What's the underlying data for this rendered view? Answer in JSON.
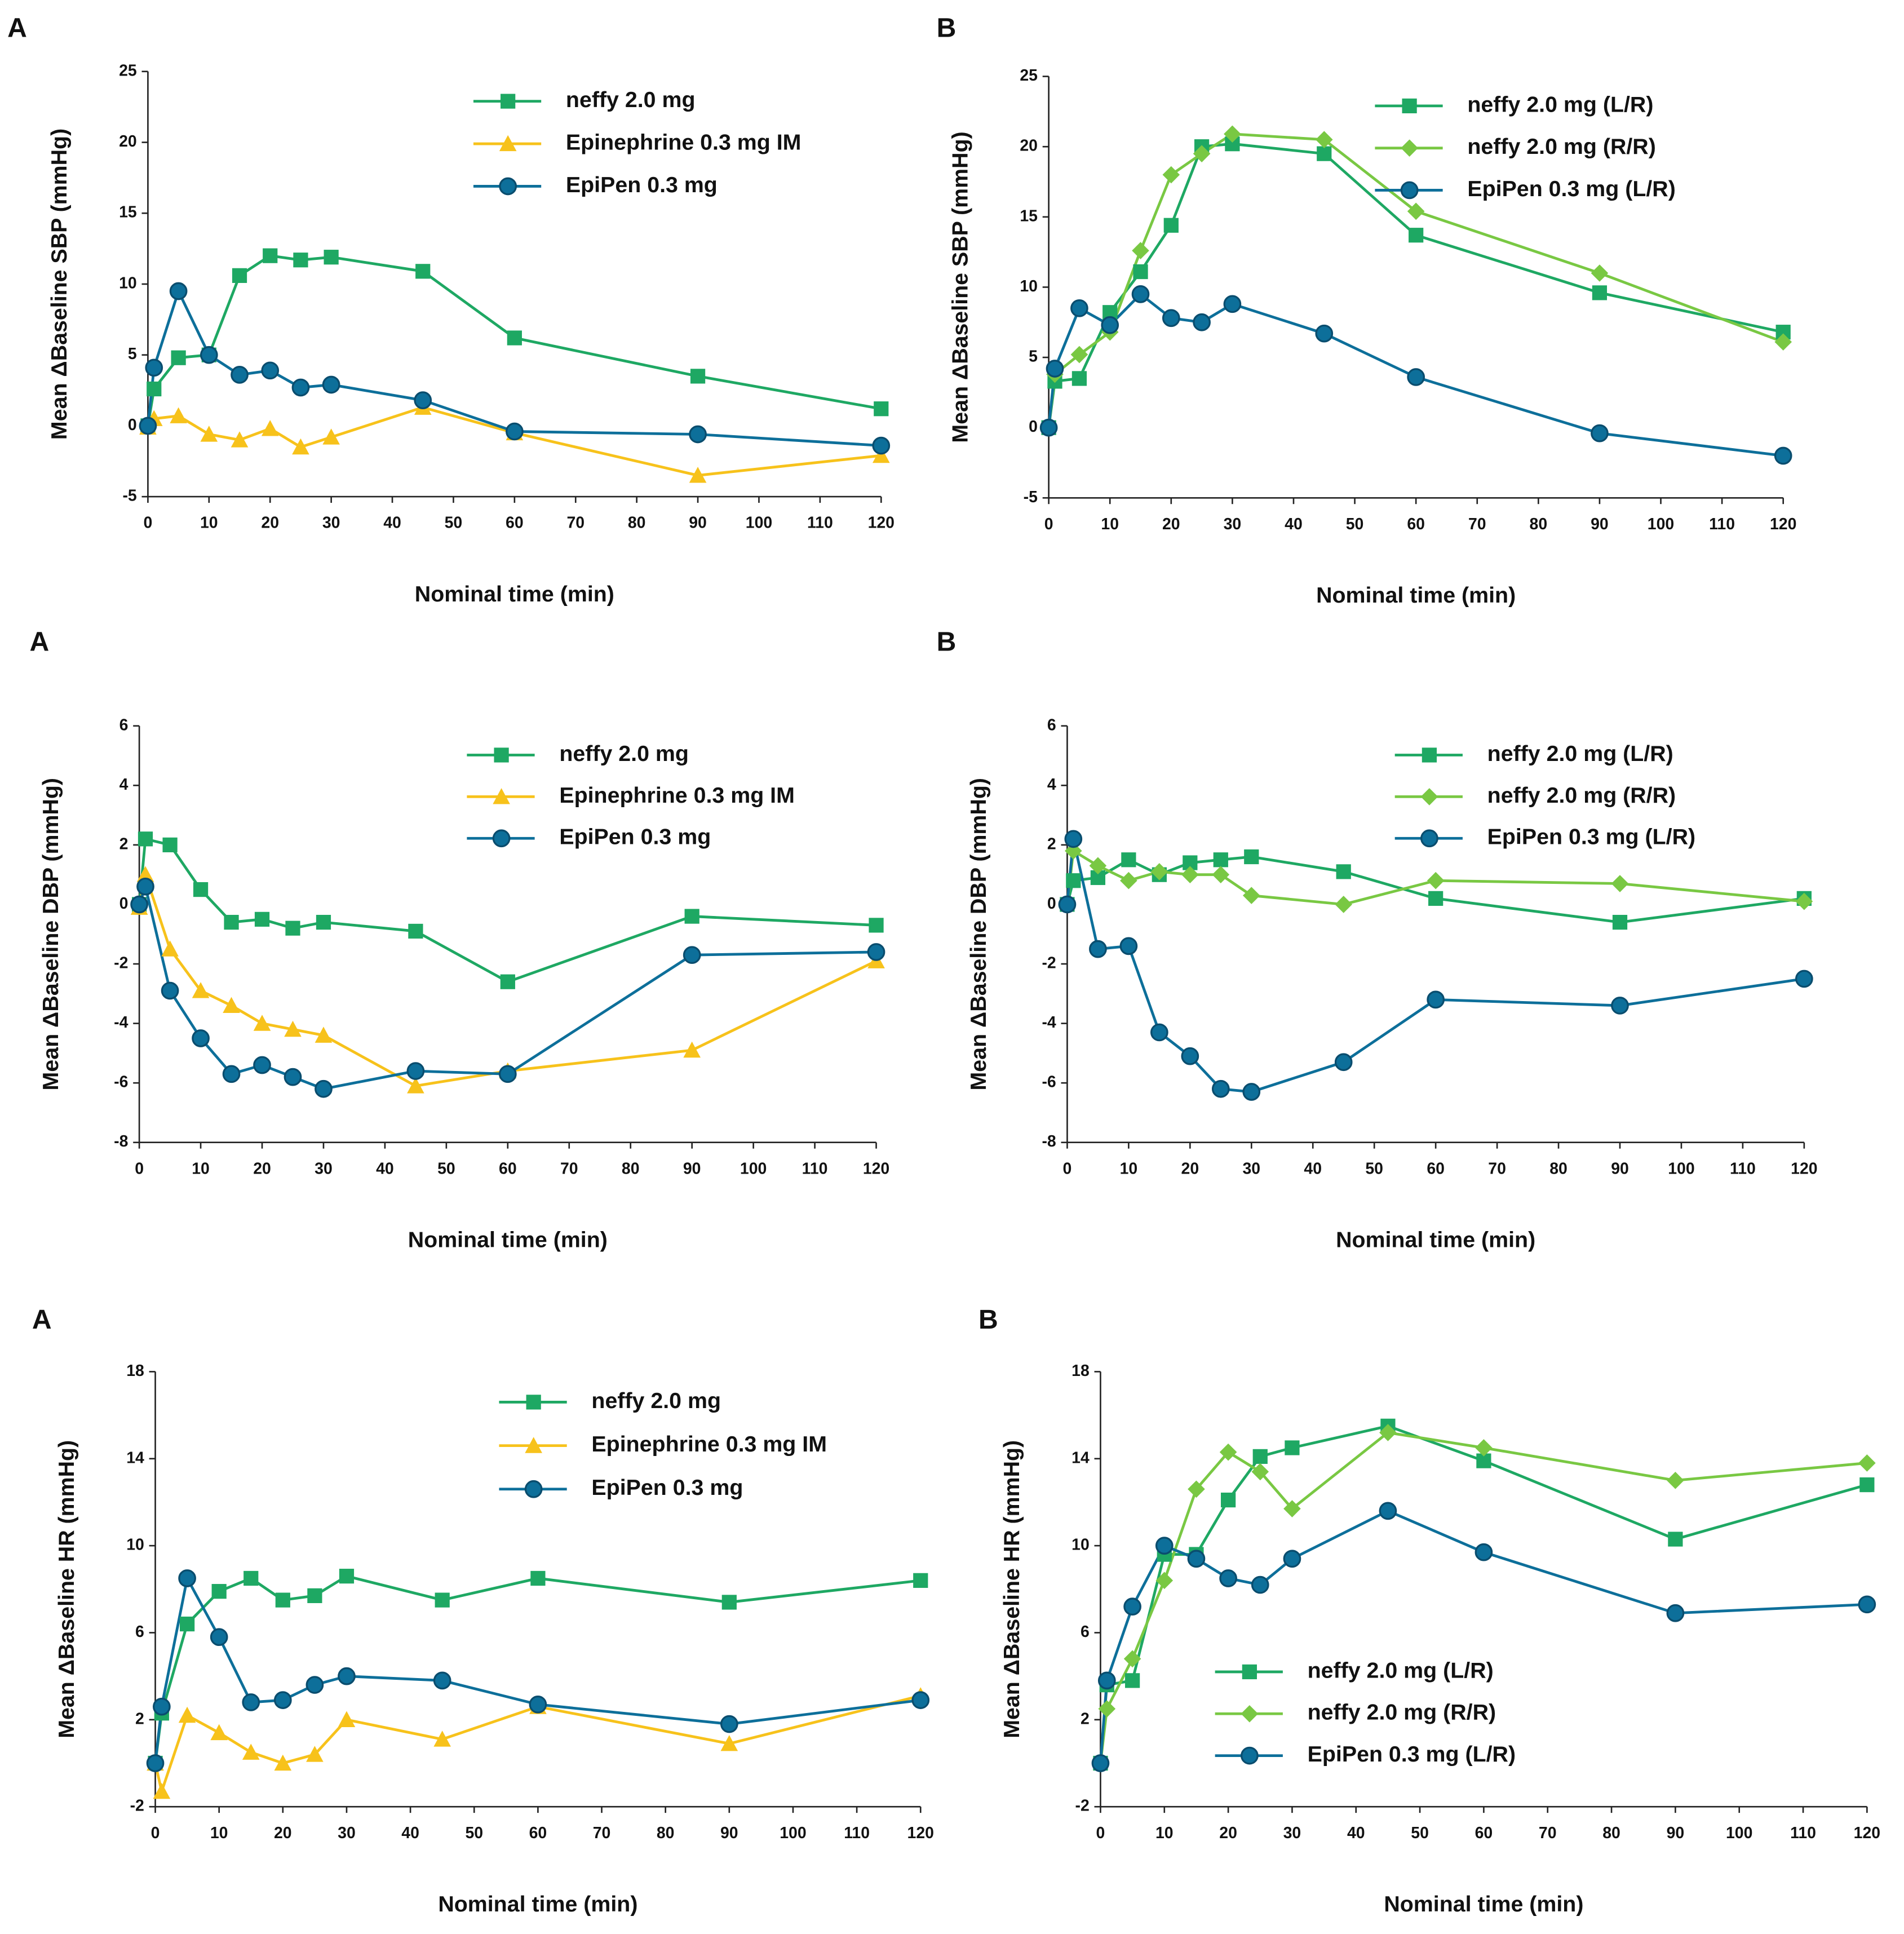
{
  "chart_data": [
    {
      "type": "line",
      "panel": "A",
      "y_label": "Mean ΔBaseline SBP (mmHg)",
      "x_label": "Nominal time (min)",
      "x": [
        0,
        1,
        5,
        10,
        15,
        20,
        25,
        30,
        45,
        60,
        90,
        120
      ],
      "xlim": [
        0,
        120
      ],
      "xticks": [
        0,
        10,
        20,
        30,
        40,
        50,
        60,
        70,
        80,
        90,
        100,
        110,
        120
      ],
      "ylim": [
        -5,
        25
      ],
      "yticks": [
        -5,
        0,
        5,
        10,
        15,
        20,
        25
      ],
      "legend_position": "upper right",
      "series": [
        {
          "name": "neffy 2.0 mg",
          "color": "#1ea863",
          "marker": "square",
          "values": [
            0,
            2.6,
            4.8,
            5.0,
            10.6,
            12.0,
            11.7,
            11.9,
            10.9,
            6.2,
            3.5,
            1.2
          ]
        },
        {
          "name": "Epinephrine 0.3 mg IM",
          "color": "#f7c21b",
          "marker": "triangle",
          "values": [
            -0.1,
            0.5,
            0.7,
            -0.6,
            -1.0,
            -0.2,
            -1.5,
            -0.8,
            1.3,
            -0.5,
            -3.5,
            -2.1
          ]
        },
        {
          "name": "EpiPen 0.3 mg",
          "color": "#0d6f9a",
          "marker": "circle",
          "values": [
            0,
            4.1,
            9.5,
            5.0,
            3.6,
            3.9,
            2.7,
            2.9,
            1.8,
            -0.4,
            -0.6,
            -1.4
          ]
        }
      ]
    },
    {
      "type": "line",
      "panel": "B",
      "y_label": "Mean ΔBaseline SBP (mmHg)",
      "x_label": "Nominal time (min)",
      "x": [
        0,
        1,
        5,
        10,
        15,
        20,
        25,
        30,
        45,
        60,
        90,
        120
      ],
      "xlim": [
        0,
        120
      ],
      "xticks": [
        0,
        10,
        20,
        30,
        40,
        50,
        60,
        70,
        80,
        90,
        100,
        110,
        120
      ],
      "ylim": [
        -5,
        25
      ],
      "yticks": [
        -5,
        0,
        5,
        10,
        15,
        20,
        25
      ],
      "legend_position": "upper right",
      "series": [
        {
          "name": "neffy 2.0 mg (L/R)",
          "color": "#1ea863",
          "marker": "square",
          "values": [
            0,
            3.3,
            3.5,
            8.2,
            11.1,
            14.4,
            20.0,
            20.2,
            19.5,
            13.7,
            9.6,
            6.8
          ]
        },
        {
          "name": "neffy 2.0 mg (R/R)",
          "color": "#79c843",
          "marker": "diamond",
          "values": [
            0,
            3.8,
            5.2,
            6.8,
            12.6,
            18.0,
            19.5,
            20.9,
            20.5,
            15.4,
            11.0,
            6.1
          ]
        },
        {
          "name": "EpiPen 0.3 mg (L/R)",
          "color": "#0d6f9a",
          "marker": "circle",
          "values": [
            0,
            4.2,
            8.5,
            7.3,
            9.5,
            7.8,
            7.5,
            8.8,
            6.7,
            3.6,
            -0.4,
            -2.0
          ]
        }
      ]
    },
    {
      "type": "line",
      "panel": "A",
      "y_label": "Mean ΔBaseline DBP (mmHg)",
      "x_label": "Nominal time (min)",
      "x": [
        0,
        1,
        5,
        10,
        15,
        20,
        25,
        30,
        45,
        60,
        90,
        120
      ],
      "xlim": [
        0,
        120
      ],
      "xticks": [
        0,
        10,
        20,
        30,
        40,
        50,
        60,
        70,
        80,
        90,
        100,
        110,
        120
      ],
      "ylim": [
        -8,
        6
      ],
      "yticks": [
        -8,
        -6,
        -4,
        -2,
        0,
        2,
        4,
        6
      ],
      "legend_position": "upper right",
      "series": [
        {
          "name": "neffy 2.0 mg",
          "color": "#1ea863",
          "marker": "square",
          "values": [
            0,
            2.2,
            2.0,
            0.5,
            -0.6,
            -0.5,
            -0.8,
            -0.6,
            -0.9,
            -2.6,
            -0.4,
            -0.7
          ]
        },
        {
          "name": "Epinephrine 0.3 mg IM",
          "color": "#f7c21b",
          "marker": "triangle",
          "values": [
            -0.1,
            1.0,
            -1.5,
            -2.9,
            -3.4,
            -4.0,
            -4.2,
            -4.4,
            -6.1,
            -5.6,
            -4.9,
            -1.9
          ]
        },
        {
          "name": "EpiPen 0.3 mg",
          "color": "#0d6f9a",
          "marker": "circle",
          "values": [
            0,
            0.6,
            -2.9,
            -4.5,
            -5.7,
            -5.4,
            -5.8,
            -6.2,
            -5.6,
            -5.7,
            -1.7,
            -1.6
          ]
        }
      ]
    },
    {
      "type": "line",
      "panel": "B",
      "y_label": "Mean ΔBaseline DBP (mmHg)",
      "x_label": "Nominal time (min)",
      "x": [
        0,
        1,
        5,
        10,
        15,
        20,
        25,
        30,
        45,
        60,
        90,
        120
      ],
      "xlim": [
        0,
        120
      ],
      "xticks": [
        0,
        10,
        20,
        30,
        40,
        50,
        60,
        70,
        80,
        90,
        100,
        110,
        120
      ],
      "ylim": [
        -8,
        6
      ],
      "yticks": [
        -8,
        -6,
        -4,
        -2,
        0,
        2,
        4,
        6
      ],
      "legend_position": "upper right",
      "series": [
        {
          "name": "neffy 2.0 mg (L/R)",
          "color": "#1ea863",
          "marker": "square",
          "values": [
            0,
            0.8,
            0.9,
            1.5,
            1.0,
            1.4,
            1.5,
            1.6,
            1.1,
            0.2,
            -0.6,
            0.2
          ]
        },
        {
          "name": "neffy 2.0 mg (R/R)",
          "color": "#79c843",
          "marker": "diamond",
          "values": [
            0,
            1.8,
            1.3,
            0.8,
            1.1,
            1.0,
            1.0,
            0.3,
            0.0,
            0.8,
            0.7,
            0.1
          ]
        },
        {
          "name": "EpiPen 0.3 mg (L/R)",
          "color": "#0d6f9a",
          "marker": "circle",
          "values": [
            0,
            2.2,
            -1.5,
            -1.4,
            -4.3,
            -5.1,
            -6.2,
            -6.3,
            -5.3,
            -3.2,
            -3.4,
            -2.5
          ]
        }
      ]
    },
    {
      "type": "line",
      "panel": "A",
      "y_label": "Mean ΔBaseline HR (mmHg)",
      "x_label": "Nominal time (min)",
      "x": [
        0,
        1,
        5,
        10,
        15,
        20,
        25,
        30,
        45,
        60,
        90,
        120
      ],
      "xlim": [
        0,
        120
      ],
      "xticks": [
        0,
        10,
        20,
        30,
        40,
        50,
        60,
        70,
        80,
        90,
        100,
        110,
        120
      ],
      "ylim": [
        -2,
        18
      ],
      "yticks": [
        -2,
        2,
        6,
        10,
        14,
        18
      ],
      "legend_position": "upper right",
      "series": [
        {
          "name": "neffy 2.0 mg",
          "color": "#1ea863",
          "marker": "square",
          "values": [
            0,
            2.3,
            6.4,
            7.9,
            8.5,
            7.5,
            7.7,
            8.6,
            7.5,
            8.5,
            7.4,
            8.4
          ]
        },
        {
          "name": "Epinephrine 0.3 mg IM",
          "color": "#f7c21b",
          "marker": "triangle",
          "values": [
            0,
            -1.3,
            2.2,
            1.4,
            0.5,
            0.0,
            0.4,
            2.0,
            1.1,
            2.6,
            0.9,
            3.1
          ]
        },
        {
          "name": "EpiPen 0.3 mg",
          "color": "#0d6f9a",
          "marker": "circle",
          "values": [
            0,
            2.6,
            8.5,
            5.8,
            2.8,
            2.9,
            3.6,
            4.0,
            3.8,
            2.7,
            1.8,
            2.9
          ]
        }
      ]
    },
    {
      "type": "line",
      "panel": "B",
      "y_label": "Mean ΔBaseline HR (mmHg)",
      "x_label": "Nominal time (min)",
      "x": [
        0,
        1,
        5,
        10,
        15,
        20,
        25,
        30,
        45,
        60,
        90,
        120
      ],
      "xlim": [
        0,
        120
      ],
      "xticks": [
        0,
        10,
        20,
        30,
        40,
        50,
        60,
        70,
        80,
        90,
        100,
        110,
        120
      ],
      "ylim": [
        -2,
        18
      ],
      "yticks": [
        -2,
        2,
        6,
        10,
        14,
        18
      ],
      "legend_position": "lower center",
      "series": [
        {
          "name": "neffy 2.0 mg (L/R)",
          "color": "#1ea863",
          "marker": "square",
          "values": [
            0,
            3.6,
            3.8,
            9.6,
            9.6,
            12.1,
            14.1,
            14.5,
            15.5,
            13.9,
            10.3,
            12.8
          ]
        },
        {
          "name": "neffy 2.0 mg (R/R)",
          "color": "#79c843",
          "marker": "diamond",
          "values": [
            0,
            2.5,
            4.8,
            8.4,
            12.6,
            14.3,
            13.4,
            11.7,
            15.2,
            14.5,
            13.0,
            13.8
          ]
        },
        {
          "name": "EpiPen 0.3 mg (L/R)",
          "color": "#0d6f9a",
          "marker": "circle",
          "values": [
            0,
            3.8,
            7.2,
            10.0,
            9.4,
            8.5,
            8.2,
            9.4,
            11.6,
            9.7,
            6.9,
            7.3
          ]
        }
      ]
    }
  ]
}
